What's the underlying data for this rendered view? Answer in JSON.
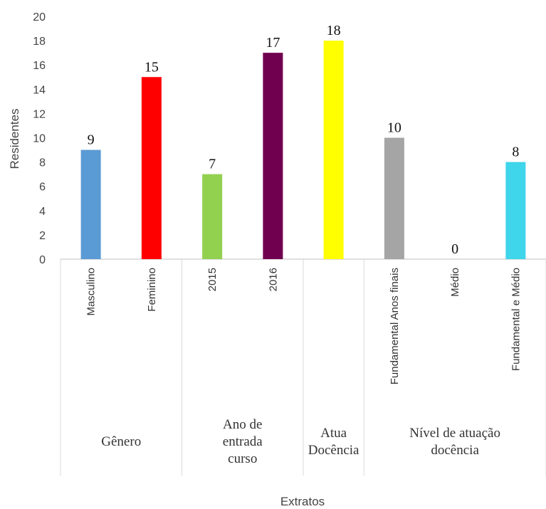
{
  "chart_data": {
    "type": "bar",
    "ylabel": "Residentes",
    "xlabel": "Extratos",
    "ylim": [
      0,
      20
    ],
    "yticks": [
      "0",
      "2",
      "4",
      "6",
      "8",
      "10",
      "12",
      "14",
      "16",
      "18",
      "20"
    ],
    "grid": false,
    "categories": [
      "Masculino",
      "Feminino",
      "2015",
      "2016",
      "",
      "Fundamental Anos finais",
      "Médio",
      "Fundamental e Médio"
    ],
    "values": [
      9,
      15,
      7,
      17,
      18,
      10,
      0,
      8
    ],
    "colors": [
      "#5b9bd5",
      "#ff0000",
      "#92d050",
      "#70004f",
      "#ffff00",
      "#a5a5a5",
      "#ffffff",
      "#3fd5ea"
    ],
    "groups": [
      {
        "label": [
          "Gênero"
        ],
        "count": 2
      },
      {
        "label": [
          "Ano de",
          "entrada",
          "curso"
        ],
        "count": 2
      },
      {
        "label": [
          "Atua",
          "Docência"
        ],
        "count": 1
      },
      {
        "label": [
          "Nível de atuação",
          "docência"
        ],
        "count": 3
      }
    ]
  }
}
